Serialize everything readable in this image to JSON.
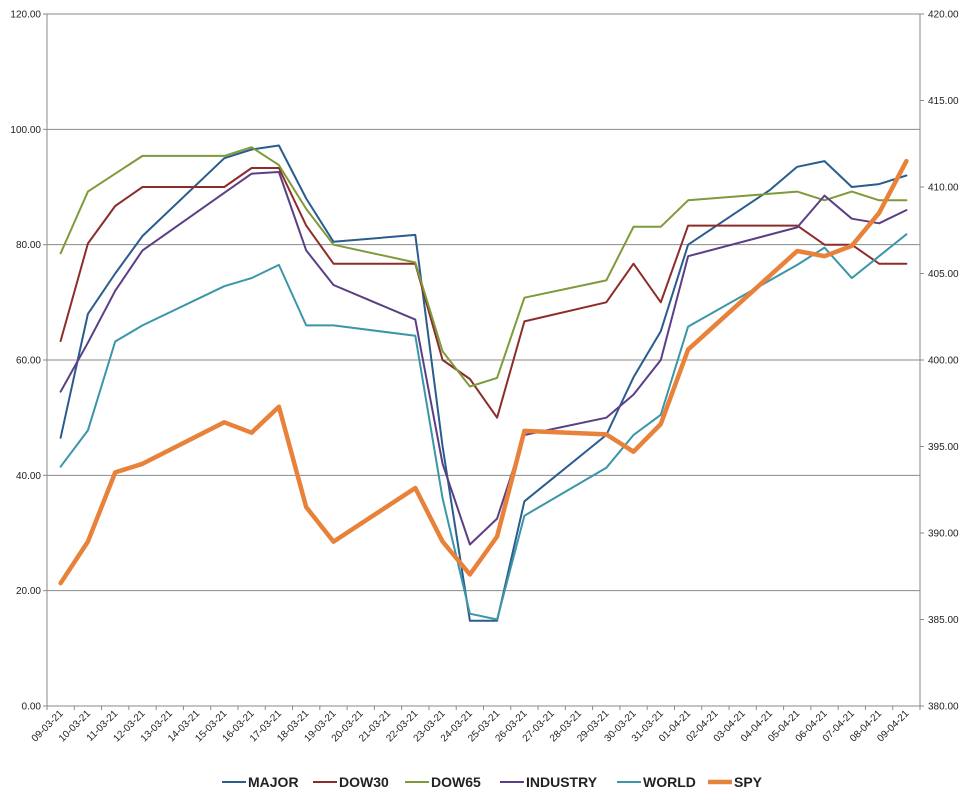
{
  "chart_data": {
    "type": "line",
    "title": "",
    "xlabel": "",
    "ylabel": "",
    "x": [
      "09-03-21",
      "10-03-21",
      "11-03-21",
      "12-03-21",
      "13-03-21",
      "14-03-21",
      "15-03-21",
      "16-03-21",
      "17-03-21",
      "18-03-21",
      "19-03-21",
      "20-03-21",
      "21-03-21",
      "22-03-21",
      "23-03-21",
      "24-03-21",
      "25-03-21",
      "26-03-21",
      "27-03-21",
      "28-03-21",
      "29-03-21",
      "30-03-21",
      "31-03-21",
      "01-04-21",
      "02-04-21",
      "03-04-21",
      "04-04-21",
      "05-04-21",
      "06-04-21",
      "07-04-21",
      "08-04-21",
      "09-04-21"
    ],
    "y_left": {
      "min": 0,
      "max": 120,
      "ticks": [
        "0.00",
        "20.00",
        "40.00",
        "60.00",
        "80.00",
        "100.00",
        "120.00"
      ]
    },
    "y_right": {
      "min": 380,
      "max": 420,
      "ticks": [
        "380.00",
        "385.00",
        "390.00",
        "395.00",
        "400.00",
        "405.00",
        "410.00",
        "415.00",
        "420.00"
      ]
    },
    "grid": true,
    "legend_position": "bottom",
    "series": [
      {
        "name": "MAJOR",
        "axis": "left",
        "color": "#2a5c8e",
        "width": 2,
        "points": [
          [
            0,
            46.5
          ],
          [
            1,
            68
          ],
          [
            2,
            75
          ],
          [
            3,
            81.5
          ],
          [
            6,
            95
          ],
          [
            7,
            96.5
          ],
          [
            8,
            97.2
          ],
          [
            9,
            88
          ],
          [
            10,
            80.5
          ],
          [
            13,
            81.7
          ],
          [
            14,
            45
          ],
          [
            15,
            14.8
          ],
          [
            16,
            14.8
          ],
          [
            17,
            35.5
          ],
          [
            20,
            47
          ],
          [
            21,
            57
          ],
          [
            22,
            65
          ],
          [
            23,
            80
          ],
          [
            26,
            89.5
          ],
          [
            27,
            93.5
          ],
          [
            28,
            94.5
          ],
          [
            29,
            90
          ],
          [
            30,
            90.5
          ],
          [
            31,
            92
          ]
        ]
      },
      {
        "name": "DOW30",
        "axis": "left",
        "color": "#8c2d2a",
        "width": 2,
        "points": [
          [
            0,
            63.3
          ],
          [
            1,
            80.2
          ],
          [
            2,
            86.7
          ],
          [
            3,
            90
          ],
          [
            6,
            90
          ],
          [
            7,
            93.3
          ],
          [
            8,
            93.3
          ],
          [
            9,
            83.3
          ],
          [
            10,
            76.7
          ],
          [
            13,
            76.7
          ],
          [
            14,
            60
          ],
          [
            15,
            56.7
          ],
          [
            16,
            50
          ],
          [
            17,
            66.7
          ],
          [
            20,
            70
          ],
          [
            21,
            76.7
          ],
          [
            22,
            70
          ],
          [
            23,
            83.3
          ],
          [
            27,
            83.3
          ],
          [
            28,
            80
          ],
          [
            29,
            80
          ],
          [
            30,
            76.7
          ],
          [
            31,
            76.7
          ]
        ]
      },
      {
        "name": "DOW65",
        "axis": "left",
        "color": "#7e9a3a",
        "width": 2,
        "points": [
          [
            0,
            78.5
          ],
          [
            1,
            89.2
          ],
          [
            2,
            92.3
          ],
          [
            3,
            95.4
          ],
          [
            6,
            95.4
          ],
          [
            7,
            96.9
          ],
          [
            8,
            93.8
          ],
          [
            9,
            86.2
          ],
          [
            10,
            80
          ],
          [
            13,
            76.9
          ],
          [
            14,
            61.5
          ],
          [
            15,
            55.4
          ],
          [
            16,
            56.9
          ],
          [
            17,
            70.8
          ],
          [
            20,
            73.8
          ],
          [
            21,
            83.1
          ],
          [
            22,
            83.1
          ],
          [
            23,
            87.7
          ],
          [
            27,
            89.2
          ],
          [
            28,
            87.7
          ],
          [
            29,
            89.2
          ],
          [
            30,
            87.7
          ],
          [
            31,
            87.7
          ]
        ]
      },
      {
        "name": "INDUSTRY",
        "axis": "left",
        "color": "#5b3f86",
        "width": 2,
        "points": [
          [
            0,
            54.5
          ],
          [
            1,
            63
          ],
          [
            2,
            72
          ],
          [
            3,
            79
          ],
          [
            6,
            89
          ],
          [
            7,
            92.3
          ],
          [
            8,
            92.6
          ],
          [
            9,
            79
          ],
          [
            10,
            73
          ],
          [
            13,
            67
          ],
          [
            14,
            42
          ],
          [
            15,
            28
          ],
          [
            16,
            32.5
          ],
          [
            17,
            47
          ],
          [
            20,
            50
          ],
          [
            21,
            54
          ],
          [
            22,
            60
          ],
          [
            23,
            78
          ],
          [
            27,
            83
          ],
          [
            28,
            88.5
          ],
          [
            29,
            84.5
          ],
          [
            30,
            83.7
          ],
          [
            31,
            86
          ]
        ]
      },
      {
        "name": "WORLD",
        "axis": "left",
        "color": "#3a96a8",
        "width": 2,
        "points": [
          [
            0,
            41.5
          ],
          [
            1,
            47.8
          ],
          [
            2,
            63.2
          ],
          [
            3,
            66
          ],
          [
            6,
            72.8
          ],
          [
            7,
            74.2
          ],
          [
            8,
            76.5
          ],
          [
            9,
            66
          ],
          [
            10,
            66
          ],
          [
            13,
            64.2
          ],
          [
            14,
            36
          ],
          [
            15,
            16
          ],
          [
            16,
            15
          ],
          [
            17,
            33
          ],
          [
            20,
            41.3
          ],
          [
            21,
            47
          ],
          [
            22,
            50.5
          ],
          [
            23,
            65.8
          ],
          [
            27,
            76.5
          ],
          [
            28,
            79.5
          ],
          [
            29,
            74.2
          ],
          [
            30,
            78
          ],
          [
            31,
            81.8
          ]
        ]
      },
      {
        "name": "SPY",
        "axis": "right",
        "color": "#e8823a",
        "width": 4.5,
        "points": [
          [
            0,
            387.1
          ],
          [
            1,
            389.5
          ],
          [
            2,
            393.5
          ],
          [
            3,
            394
          ],
          [
            6,
            396.4
          ],
          [
            7,
            395.8
          ],
          [
            8,
            397.3
          ],
          [
            9,
            391.5
          ],
          [
            10,
            389.5
          ],
          [
            13,
            392.6
          ],
          [
            14,
            389.5
          ],
          [
            15,
            387.6
          ],
          [
            16,
            389.8
          ],
          [
            17,
            395.9
          ],
          [
            20,
            395.7
          ],
          [
            21,
            394.7
          ],
          [
            22,
            396.3
          ],
          [
            23,
            400.6
          ],
          [
            27,
            406.3
          ],
          [
            28,
            406
          ],
          [
            29,
            406.6
          ],
          [
            30,
            408.5
          ],
          [
            31,
            411.5
          ]
        ]
      }
    ]
  }
}
